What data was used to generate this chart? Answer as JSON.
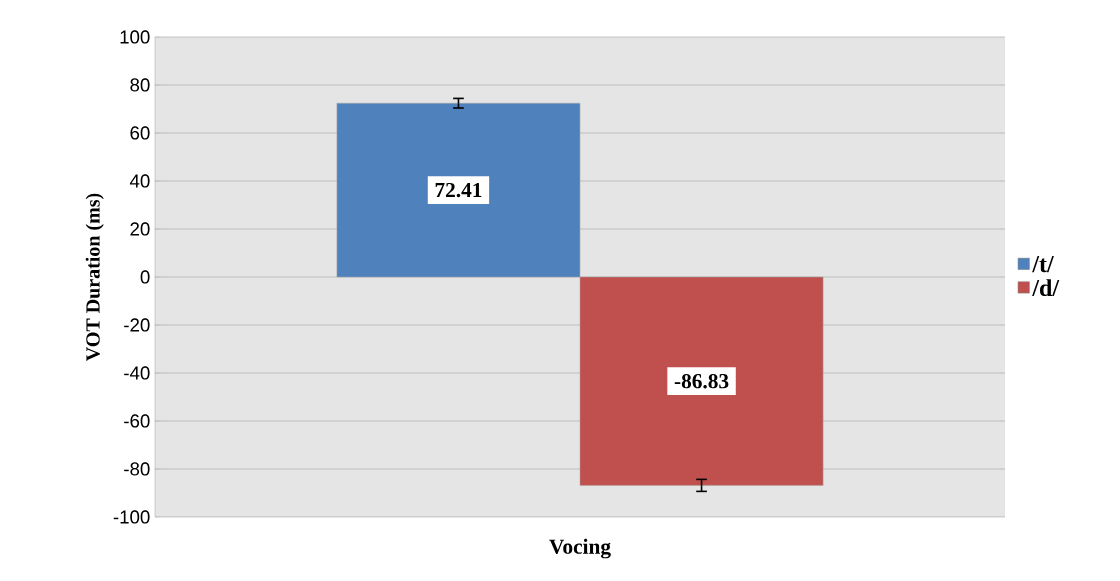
{
  "chart_data": {
    "type": "bar",
    "ylabel": "VOT Duration (ms)",
    "xlabel": "Vocing",
    "categories": [
      null
    ],
    "series": [
      {
        "name": "/t/",
        "color": "#4f81bd",
        "values": [
          72.41
        ],
        "errors": [
          2
        ]
      },
      {
        "name": "/d/",
        "color": "#c0504d",
        "values": [
          -86.83
        ],
        "errors": [
          2.5
        ]
      }
    ],
    "ylim": [
      -100,
      100
    ],
    "yticks": [
      -100,
      -80,
      -60,
      -40,
      -20,
      0,
      20,
      40,
      60,
      80,
      100
    ],
    "grid": "y",
    "legend": "right",
    "data_labels": true
  }
}
